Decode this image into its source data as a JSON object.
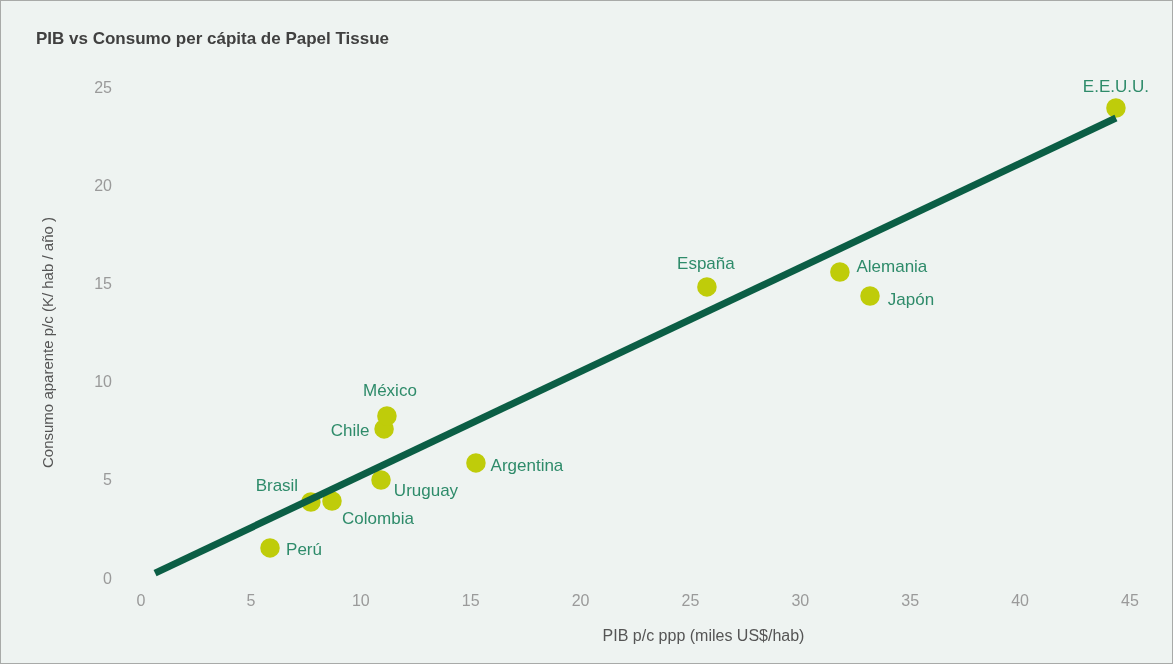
{
  "chart_data": {
    "type": "scatter",
    "title": "PIB vs Consumo per cápita de Papel Tissue",
    "xlabel": "PIB p/c ppp (miles US$/hab)",
    "ylabel": "Consumo aparente p/c (K/ hab / año )",
    "xlim": [
      0,
      45
    ],
    "ylim": [
      0,
      25
    ],
    "xticks": [
      0,
      5,
      10,
      15,
      20,
      25,
      30,
      35,
      40,
      45
    ],
    "yticks": [
      0,
      5,
      10,
      15,
      20,
      25
    ],
    "grid": false,
    "marker": "circle",
    "series": [
      {
        "name": "Perú",
        "color": "#bfcc0a",
        "x": [
          5.87
        ],
        "values": [
          1.53
        ]
      },
      {
        "name": "Brasil",
        "color": "#bfcc0a",
        "x": [
          7.73
        ],
        "values": [
          3.87
        ]
      },
      {
        "name": "Colombia",
        "color": "#bfcc0a",
        "x": [
          8.69
        ],
        "values": [
          3.92
        ]
      },
      {
        "name": "Uruguay",
        "color": "#bfcc0a",
        "x": [
          10.92
        ],
        "values": [
          4.99
        ]
      },
      {
        "name": "Chile",
        "color": "#bfcc0a",
        "x": [
          11.06
        ],
        "values": [
          7.59
        ]
      },
      {
        "name": "México",
        "color": "#bfcc0a",
        "x": [
          11.19
        ],
        "values": [
          8.25
        ]
      },
      {
        "name": "Argentina",
        "color": "#bfcc0a",
        "x": [
          15.24
        ],
        "values": [
          5.86
        ]
      },
      {
        "name": "España",
        "color": "#bfcc0a",
        "x": [
          25.75
        ],
        "values": [
          14.82
        ]
      },
      {
        "name": "Alemania",
        "color": "#bfcc0a",
        "x": [
          31.8
        ],
        "values": [
          15.58
        ]
      },
      {
        "name": "Japón",
        "color": "#bfcc0a",
        "x": [
          33.17
        ],
        "values": [
          14.36
        ]
      },
      {
        "name": "E.E.U.U.",
        "color": "#bfcc0a",
        "x": [
          44.36
        ],
        "values": [
          23.93
        ]
      },
      {
        "type": "line",
        "color": "#0b5e45",
        "marker": "none",
        "x": [
          0.64,
          44.36
        ],
        "values": [
          0.25,
          23.42
        ]
      }
    ]
  }
}
